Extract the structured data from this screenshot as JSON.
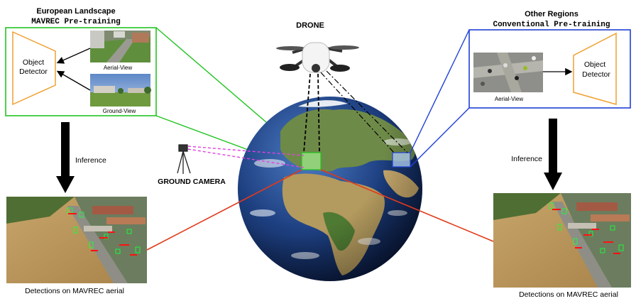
{
  "left_panel": {
    "title": "European Landscape",
    "subtitle": "MAVREC Pre-training",
    "detector_line1": "Object",
    "detector_line2": "Detector",
    "aerial_caption": "Aerial-View",
    "ground_caption": "Ground-View",
    "frame_color": "#22c422",
    "detector_color": "#f0a030"
  },
  "right_panel": {
    "title": "Other Regions",
    "subtitle": "Conventional Pre-training",
    "detector_line1": "Object",
    "detector_line2": "Detector",
    "aerial_caption": "Aerial-View",
    "frame_color": "#1f3fd6",
    "detector_color": "#f0a030"
  },
  "center": {
    "drone_label": "DRONE",
    "ground_camera_label": "GROUND CAMERA"
  },
  "inference": {
    "left_label": "Inference",
    "right_label": "Inference"
  },
  "detections": {
    "left_caption": "Detections on MAVREC aerial",
    "right_caption": "Detections on MAVREC aerial",
    "box_color": "#18ff3a",
    "text_color": "#ff1010"
  },
  "colors": {
    "connector": "#e03a1a",
    "camera_rays": "#e040e0",
    "inference_arrow": "#000000"
  }
}
